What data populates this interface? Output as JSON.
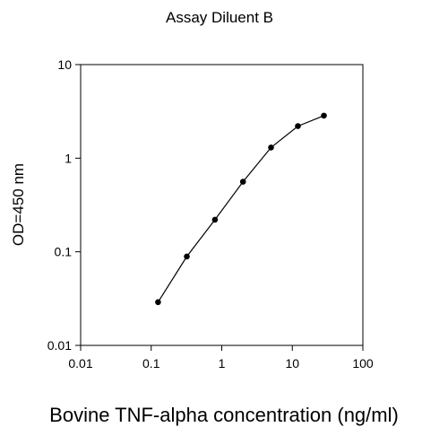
{
  "chart_data": {
    "type": "line",
    "title": "Assay Diluent B",
    "xlabel": "Bovine TNF-alpha concentration (ng/ml)",
    "ylabel": "OD=450 nm",
    "x_scale": "log",
    "y_scale": "log",
    "xlim": [
      0.01,
      100
    ],
    "ylim": [
      0.01,
      10
    ],
    "x_ticks": [
      0.01,
      0.1,
      1,
      10,
      100
    ],
    "x_tick_labels": [
      "0.01",
      "0.1",
      "1",
      "10",
      "100"
    ],
    "y_ticks": [
      0.01,
      0.1,
      1,
      10
    ],
    "y_tick_labels": [
      "0.01",
      "0.1",
      "1",
      "10"
    ],
    "grid": false,
    "legend": "none",
    "line_color": "#000000",
    "marker_color": "#000000",
    "series": [
      {
        "x": [
          0.125,
          0.32,
          0.8,
          2.0,
          5.0,
          12.0,
          28.0
        ],
        "y": [
          0.029,
          0.089,
          0.22,
          0.56,
          1.3,
          2.2,
          2.85
        ]
      }
    ]
  }
}
